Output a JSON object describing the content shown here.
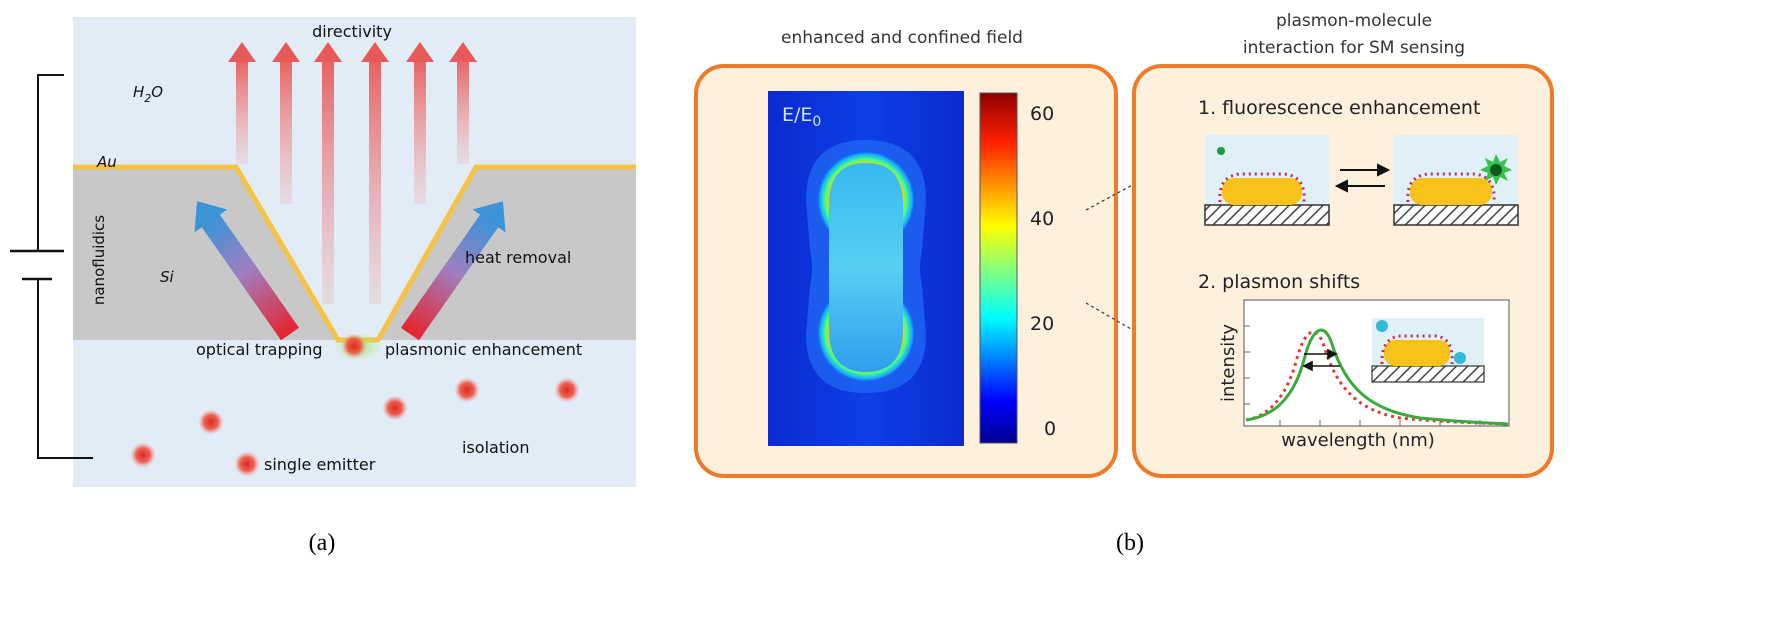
{
  "panel_a": {
    "caption": "(a)",
    "labels": {
      "directivity": "directivity",
      "h2o_base": "H",
      "h2o_sub": "2",
      "h2o_tail": "O",
      "au": "Au",
      "si": "Si",
      "nanofluidics": "nanofluidics",
      "heat_removal": "heat removal",
      "optical_trapping": "optical trapping",
      "plasmonic_enhancement": "plasmonic enhancement",
      "single_emitter": "single emitter",
      "isolation": "isolation"
    },
    "colors": {
      "water": "#e1ecf6",
      "silicon": "#c8c8c8",
      "gold": "#f5c242",
      "emitter": "#e0261d",
      "arrow_blue": "#3b93d8",
      "arrow_red": "#e8232c"
    }
  },
  "panel_b": {
    "caption": "(b)",
    "field_title": "enhanced and confined field",
    "interaction_title_line1": "plasmon-molecule",
    "interaction_title_line2": "interaction for SM sensing",
    "field_label_base": "E/E",
    "field_label_sub": "0",
    "colorbar_ticks": [
      "60",
      "40",
      "20",
      "0"
    ],
    "fluorescence_label": "1. fluorescence enhancement",
    "shifts_label": "2. plasmon shifts",
    "plot_ylabel": "intensity",
    "plot_xlabel": "wavelength (nm)",
    "colors": {
      "box_border": "#f07a2a",
      "box_fill": "#fdf1dd",
      "rod": "#f7c21a",
      "molecule": "#d0245a"
    }
  }
}
